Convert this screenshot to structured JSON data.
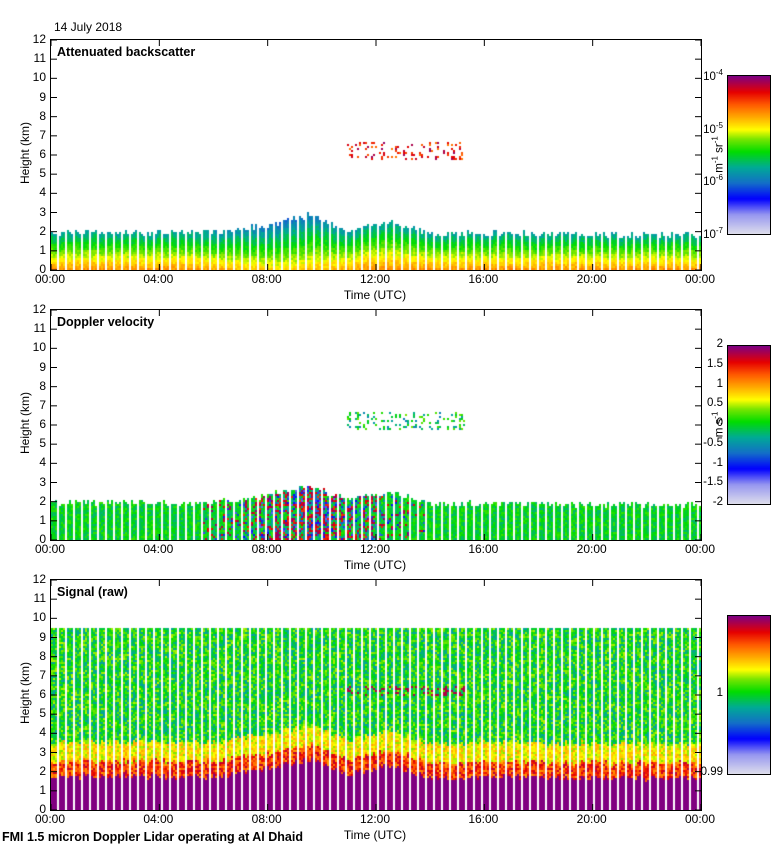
{
  "date": "14 July 2018",
  "footer": "FMI 1.5 micron Doppler Lidar operating at Al Dhaid",
  "chart_data": [
    {
      "type": "heatmap",
      "title": "Attenuated backscatter",
      "xlabel": "Time (UTC)",
      "ylabel": "Height (km)",
      "x_ticks": [
        "00:00",
        "04:00",
        "08:00",
        "12:00",
        "16:00",
        "20:00",
        "00:00"
      ],
      "y_ticks": [
        "0",
        "1",
        "2",
        "3",
        "4",
        "5",
        "6",
        "7",
        "8",
        "9",
        "10",
        "11",
        "12"
      ],
      "xlim_hours": [
        0,
        24
      ],
      "ylim_km": [
        0,
        12
      ],
      "colorbar": {
        "scale": "log",
        "range": [
          1e-07,
          0.0001
        ],
        "ticks": [
          "10^-7",
          "10^-6",
          "10^-5",
          "10^-4"
        ],
        "label": "m-1 sr-1"
      },
      "features": {
        "boundary_layer_top_km": {
          "hours": [
            0,
            4,
            6,
            8,
            9.5,
            11,
            12.5,
            14,
            16,
            20,
            24
          ],
          "values": [
            2.0,
            2.0,
            2.0,
            2.4,
            2.9,
            2.1,
            2.6,
            1.9,
            2.0,
            1.9,
            1.9
          ]
        },
        "cloud_layer_km": {
          "start_hour": 10.8,
          "end_hour": 15.3,
          "height_range": [
            5.8,
            6.7
          ]
        }
      }
    },
    {
      "type": "heatmap",
      "title": "Doppler velocity",
      "xlabel": "Time (UTC)",
      "ylabel": "Height (km)",
      "x_ticks": [
        "00:00",
        "04:00",
        "08:00",
        "12:00",
        "16:00",
        "20:00",
        "00:00"
      ],
      "y_ticks": [
        "0",
        "1",
        "2",
        "3",
        "4",
        "5",
        "6",
        "7",
        "8",
        "9",
        "10",
        "11",
        "12"
      ],
      "xlim_hours": [
        0,
        24
      ],
      "ylim_km": [
        0,
        12
      ],
      "colorbar": {
        "scale": "linear",
        "range": [
          -2,
          2
        ],
        "ticks": [
          "2",
          "1.5",
          "1",
          "0.5",
          "0",
          "-0.5",
          "-1",
          "-1.5",
          "-2"
        ],
        "label": "m s-1"
      }
    },
    {
      "type": "heatmap",
      "title": "Signal (raw)",
      "xlabel": "Time (UTC)",
      "ylabel": "Height (km)",
      "x_ticks": [
        "00:00",
        "04:00",
        "08:00",
        "12:00",
        "16:00",
        "20:00",
        "00:00"
      ],
      "y_ticks": [
        "0",
        "1",
        "2",
        "3",
        "4",
        "5",
        "6",
        "7",
        "8",
        "9",
        "10",
        "11",
        "12"
      ],
      "xlim_hours": [
        0,
        24
      ],
      "ylim_km": [
        0,
        12
      ],
      "colorbar": {
        "scale": "linear",
        "range": [
          0.99,
          1.01
        ],
        "ticks": [
          "1",
          "0.99"
        ],
        "label": ""
      },
      "features": {
        "max_range_km": 9.5
      }
    }
  ],
  "colors": {
    "frame": "#000000",
    "background": "#ffffff",
    "saturated": "#800080"
  }
}
